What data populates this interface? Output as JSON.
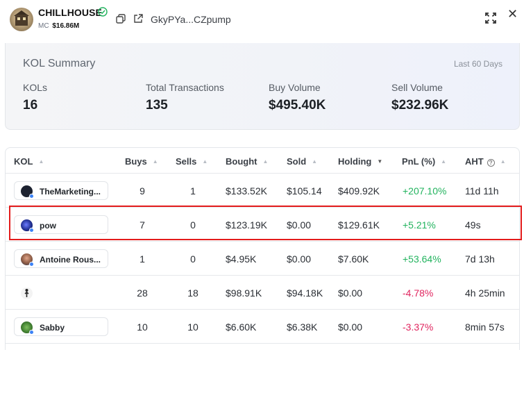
{
  "header": {
    "token_name": "CHILLHOUSE",
    "mc_label": "MC",
    "mc_value": "$16.86M",
    "address": "GkyPYa...CZpump"
  },
  "summary": {
    "title": "KOL Summary",
    "period": "Last 60 Days",
    "stats": [
      {
        "label": "KOLs",
        "value": "16"
      },
      {
        "label": "Total Transactions",
        "value": "135"
      },
      {
        "label": "Buy Volume",
        "value": "$495.40K"
      },
      {
        "label": "Sell Volume",
        "value": "$232.96K"
      }
    ]
  },
  "table": {
    "columns": [
      "KOL",
      "Buys",
      "Sells",
      "Bought",
      "Sold",
      "Holding",
      "PnL (%)",
      "AHT"
    ],
    "rows": [
      {
        "kol": "TheMarketing...",
        "buys": "9",
        "sells": "1",
        "bought": "$133.52K",
        "sold": "$105.14",
        "holding": "$409.92K",
        "pnl": "+207.10%",
        "aht": "11d 11h"
      },
      {
        "kol": "pow",
        "buys": "7",
        "sells": "0",
        "bought": "$123.19K",
        "sold": "$0.00",
        "holding": "$129.61K",
        "pnl": "+5.21%",
        "aht": "49s"
      },
      {
        "kol": "Antoine Rous...",
        "buys": "1",
        "sells": "0",
        "bought": "$4.95K",
        "sold": "$0.00",
        "holding": "$7.60K",
        "pnl": "+53.64%",
        "aht": "7d 13h"
      },
      {
        "kol": "",
        "buys": "28",
        "sells": "18",
        "bought": "$98.91K",
        "sold": "$94.18K",
        "holding": "$0.00",
        "pnl": "-4.78%",
        "aht": "4h 25min"
      },
      {
        "kol": "Sabby",
        "buys": "10",
        "sells": "10",
        "bought": "$6.60K",
        "sold": "$6.38K",
        "holding": "$0.00",
        "pnl": "-3.37%",
        "aht": "8min 57s"
      }
    ]
  },
  "colors": {
    "positive": "#22b35e",
    "negative": "#e0245e",
    "highlight": "#e31b1b",
    "verified": "#22b35e"
  }
}
